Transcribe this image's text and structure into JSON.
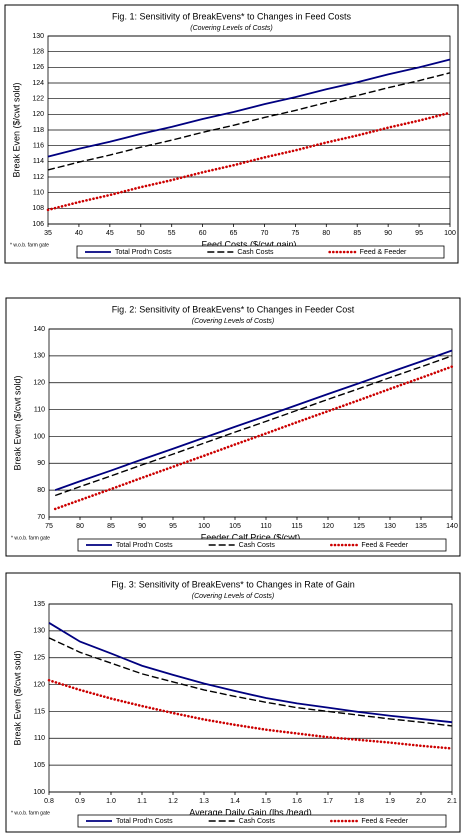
{
  "chart_data": [
    {
      "type": "line",
      "title": "Fig. 1:  Sensitivity of BreakEvens* to Changes in Feed Costs",
      "subtitle": "(Covering Levels of Costs)",
      "x_label": "Feed Costs ($/cwt gain)",
      "y_label": "Break Even ($/cwt sold)",
      "footnote": "* w.o.b. farm gate",
      "x": [
        35,
        40,
        45,
        50,
        55,
        60,
        65,
        70,
        75,
        80,
        85,
        90,
        95,
        100
      ],
      "series": [
        {
          "name": "Total Prod'n Costs",
          "color": "#000080",
          "dash": "solid",
          "values": [
            114.6,
            115.6,
            116.5,
            117.5,
            118.4,
            119.4,
            120.3,
            121.3,
            122.2,
            123.2,
            124.1,
            125.1,
            126.0,
            127.0
          ]
        },
        {
          "name": "Cash Costs",
          "color": "#000000",
          "dash": "dashed",
          "values": [
            112.9,
            113.9,
            114.8,
            115.8,
            116.7,
            117.7,
            118.6,
            119.6,
            120.5,
            121.5,
            122.4,
            123.4,
            124.3,
            125.3
          ]
        },
        {
          "name": "Feed & Feeder",
          "color": "#cc0000",
          "dash": "dotted",
          "values": [
            107.8,
            108.8,
            109.7,
            110.7,
            111.6,
            112.6,
            113.5,
            114.5,
            115.4,
            116.4,
            117.3,
            118.3,
            119.2,
            120.2
          ]
        }
      ],
      "xlim": [
        35,
        100
      ],
      "xticks": [
        35,
        40,
        45,
        50,
        55,
        60,
        65,
        70,
        75,
        80,
        85,
        90,
        95,
        100
      ],
      "ylim": [
        106,
        130
      ],
      "yticks": [
        106,
        108,
        110,
        112,
        114,
        116,
        118,
        120,
        122,
        124,
        126,
        128,
        130
      ],
      "grid": true
    },
    {
      "type": "line",
      "title": "Fig. 2:  Sensitivity of BreakEvens* to Changes in Feeder Cost",
      "subtitle": "(Covering Levels of Costs)",
      "x_label": "Feeder Calf Price ($/cwt)",
      "y_label": "Break Even ($/cwt sold)",
      "footnote": "* w.o.b. farm gate",
      "x": [
        76,
        80,
        85,
        90,
        95,
        100,
        105,
        110,
        115,
        120,
        125,
        130,
        135,
        140
      ],
      "series": [
        {
          "name": "Total Prod'n Costs",
          "color": "#000080",
          "dash": "solid",
          "values": [
            80,
            83.3,
            87.3,
            91.4,
            95.4,
            99.5,
            103.6,
            107.6,
            111.7,
            115.8,
            119.8,
            123.9,
            127.9,
            132
          ]
        },
        {
          "name": "Cash Costs",
          "color": "#000000",
          "dash": "dashed",
          "values": [
            78,
            81.3,
            85.3,
            89.4,
            93.4,
            97.5,
            101.6,
            105.6,
            109.7,
            113.8,
            117.8,
            121.9,
            125.9,
            130
          ]
        },
        {
          "name": "Feed & Feeder",
          "color": "#cc0000",
          "dash": "dotted",
          "values": [
            73,
            76.3,
            80.4,
            84.6,
            88.7,
            92.8,
            97.0,
            101.1,
            105.3,
            109.4,
            113.5,
            117.7,
            121.8,
            126
          ]
        }
      ],
      "xlim": [
        75,
        140
      ],
      "xticks": [
        75,
        80,
        85,
        90,
        95,
        100,
        105,
        110,
        115,
        120,
        125,
        130,
        135,
        140
      ],
      "ylim": [
        70,
        140
      ],
      "yticks": [
        70,
        80,
        90,
        100,
        110,
        120,
        130,
        140
      ],
      "grid": true
    },
    {
      "type": "line",
      "title": "Fig. 3:  Sensitivity of BreakEvens* to Changes in Rate of Gain",
      "subtitle": "(Covering Levels of Costs)",
      "x_label": "Average Daily Gain (lbs./head)",
      "y_label": "Break Even ($/cwt sold)",
      "footnote": "* w.o.b. farm gate",
      "x": [
        0.8,
        0.9,
        1.0,
        1.1,
        1.2,
        1.3,
        1.4,
        1.5,
        1.6,
        1.7,
        1.8,
        1.9,
        2.0,
        2.1
      ],
      "series": [
        {
          "name": "Total Prod'n Costs",
          "color": "#000080",
          "dash": "solid",
          "values": [
            131.5,
            128,
            125.8,
            123.5,
            121.8,
            120.2,
            118.8,
            117.5,
            116.5,
            115.7,
            114.9,
            114.2,
            113.6,
            113
          ]
        },
        {
          "name": "Cash Costs",
          "color": "#000000",
          "dash": "dashed",
          "values": [
            128.7,
            126,
            124,
            122,
            120.5,
            119,
            117.8,
            116.7,
            115.7,
            115,
            114.3,
            113.6,
            113,
            112.3
          ]
        },
        {
          "name": "Feed & Feeder",
          "color": "#cc0000",
          "dash": "dotted",
          "values": [
            120.8,
            119,
            117.4,
            116,
            114.7,
            113.5,
            112.5,
            111.6,
            110.9,
            110.2,
            109.7,
            109.2,
            108.6,
            108.1
          ]
        }
      ],
      "xlim": [
        0.8,
        2.1
      ],
      "xticks": [
        0.8,
        0.9,
        {
          "value": 1,
          "label": "1.0"
        },
        1.1,
        1.2,
        1.3,
        1.4,
        1.5,
        1.6,
        1.7,
        1.8,
        1.9,
        {
          "value": 2,
          "label": "2.0"
        },
        2.1
      ],
      "ylim": [
        100,
        135
      ],
      "yticks": [
        100,
        105,
        110,
        115,
        120,
        125,
        130,
        135
      ],
      "grid": true
    }
  ]
}
